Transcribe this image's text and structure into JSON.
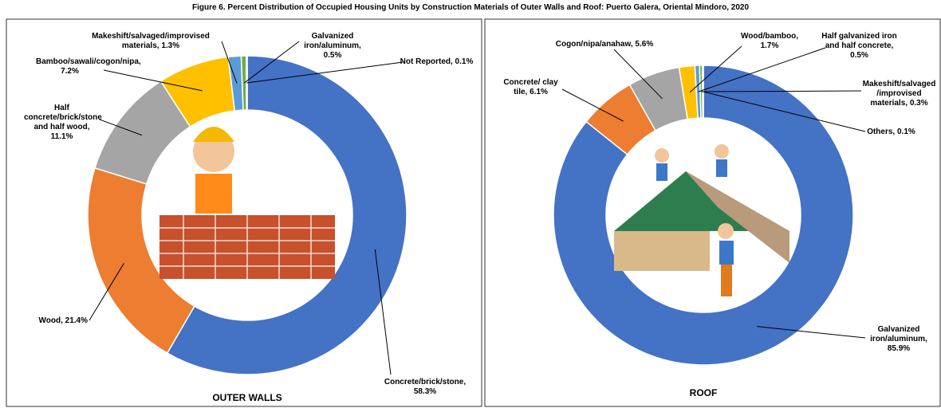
{
  "title": "Figure 6. Percent Distribution of Occupied Housing Units by Construction Materials of Outer Walls and Roof: Puerto Galera, Oriental Mindoro, 2020",
  "chart_data": [
    {
      "type": "donut",
      "title": "OUTER WALLS",
      "categories": [
        "Concrete/brick/stone,",
        "Wood,",
        "Half concrete/brick/stone and half wood,",
        "Bamboo/sawali/cogon/nipa,",
        "Makeshift/salvaged/improvised materials,",
        "Galvanized iron/aluminum,",
        "Not Reported,"
      ],
      "values": [
        58.3,
        21.4,
        11.1,
        7.2,
        1.3,
        0.5,
        0.1
      ],
      "value_labels": [
        "58.3%",
        "21.4%",
        "11.1%",
        "7.2%",
        "1.3%",
        "0.5%",
        "0.1%"
      ],
      "colors": [
        "#4472c4",
        "#ed7d31",
        "#a5a5a5",
        "#ffc000",
        "#5b9bd5",
        "#70ad47",
        "#264478"
      ]
    },
    {
      "type": "donut",
      "title": "ROOF",
      "categories": [
        "Galvanized iron/aluminum,",
        "Concrete/ clay tile,",
        "Cogon/nipa/anahaw,",
        "Wood/bamboo,",
        "Half galvanized iron and half concrete,",
        "Makeshift/salvaged /improvised materials,",
        "Others,"
      ],
      "values": [
        85.9,
        6.1,
        5.6,
        1.7,
        0.5,
        0.3,
        0.1
      ],
      "value_labels": [
        "85.9%",
        "6.1%",
        "5.6%",
        "1.7%",
        "0.5%",
        "0.3%",
        "0.1%"
      ],
      "colors": [
        "#4472c4",
        "#ed7d31",
        "#a5a5a5",
        "#ffc000",
        "#5b9bd5",
        "#70ad47",
        "#264478"
      ]
    }
  ]
}
